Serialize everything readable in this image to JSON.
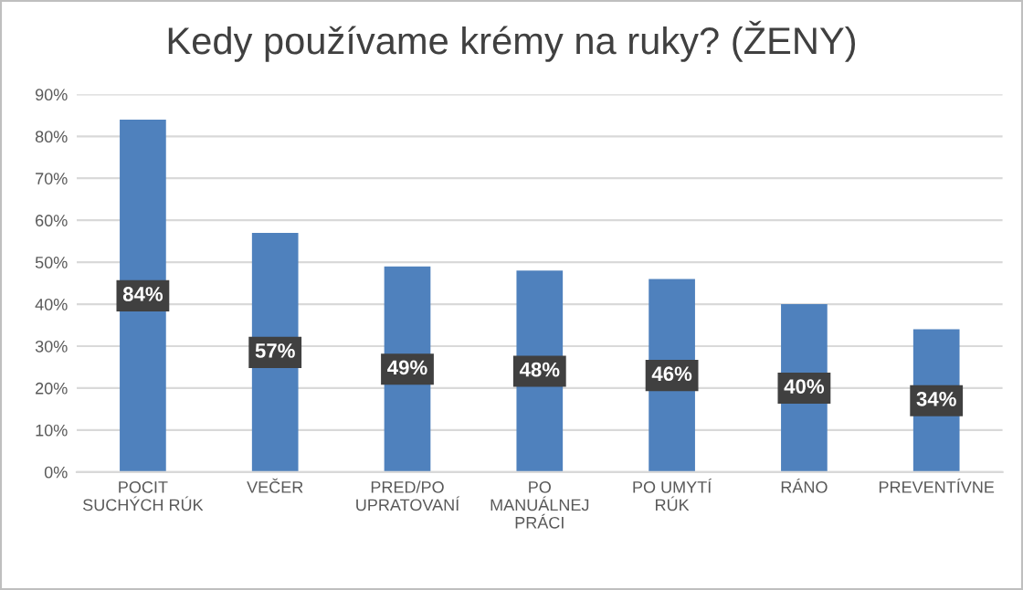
{
  "chart_data": {
    "type": "bar",
    "title": "Kedy používame krémy na ruky? (ŽENY)",
    "categories": [
      "POCIT SUCHÝCH RÚK",
      "VEČER",
      "PRED/PO UPRATOVANÍ",
      "PO MANUÁLNEJ PRÁCI",
      "PO UMYTÍ RÚK",
      "RÁNO",
      "PREVENTÍVNE"
    ],
    "values": [
      84,
      57,
      49,
      48,
      46,
      40,
      34
    ],
    "value_labels": [
      "84%",
      "57%",
      "49%",
      "48%",
      "46%",
      "40%",
      "34%"
    ],
    "color": "#4f81bd",
    "ylim": [
      0,
      90
    ],
    "yticks": [
      {
        "value": 0,
        "label": "0%"
      },
      {
        "value": 10,
        "label": "10%"
      },
      {
        "value": 20,
        "label": "20%"
      },
      {
        "value": 30,
        "label": "30%"
      },
      {
        "value": 40,
        "label": "40%"
      },
      {
        "value": 50,
        "label": "50%"
      },
      {
        "value": 60,
        "label": "60%"
      },
      {
        "value": 70,
        "label": "70%"
      },
      {
        "value": 80,
        "label": "80%"
      },
      {
        "value": 90,
        "label": "90%"
      }
    ],
    "grid": "y",
    "legend": false
  }
}
